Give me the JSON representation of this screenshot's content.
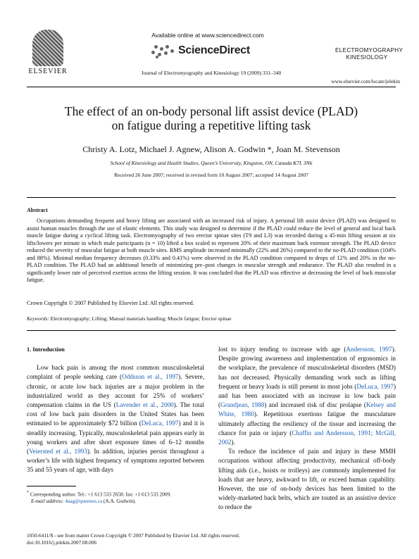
{
  "header": {
    "publisher": "ELSEVIER",
    "available_online": "Available online at www.sciencedirect.com",
    "sciencedirect": "ScienceDirect",
    "journal_ref": "Journal of Electromyography and Kinesiology 19 (2009) 331–340",
    "journal_logo_line1": "ELECTROMYOGRAPHY",
    "journal_logo_line2": "KINESIOLOGY",
    "url": "www.elsevier.com/locate/jelekin"
  },
  "title_line1": "The effect of an on-body personal lift assist device (PLAD)",
  "title_line2": "on fatigue during a repetitive lifting task",
  "authors": "Christy A. Lotz, Michael J. Agnew, Alison A. Godwin *, Joan M. Stevenson",
  "affiliation": "School of Kinesiology and Health Studies, Queen’s University, Kingston, ON, Canada K7L 3N6",
  "received": "Received 26 June 2007; received in revised form 10 August 2007; accepted 14 August 2007",
  "abstract": {
    "heading": "Abstract",
    "text": "Occupations demanding frequent and heavy lifting are associated with an increased risk of injury. A personal lift assist device (PLAD) was designed to assist human muscles through the use of elastic elements. This study was designed to determine if the PLAD could reduce the level of general and local back muscle fatigue during a cyclical lifting task. Electromyography of two erector spinae sites (T9 and L3) was recorded during a 45-min lifting session at six lifts/lowers per minute in which male participants (n = 10) lifted a box scaled to represent 20% of their maximum back extensor strength. The PLAD device reduced the severity of muscular fatigue at both muscle sites. RMS amplitude increased minimally (22% and 26%) compared to the no-PLAD condition (104% and 88%). Minimal median frequency decreases (0.33% and 0.41%) were observed in the PLAD condition compared to drops of 12% and 20% in the no-PLAD condition. The PLAD had an additional benefit of minimizing pre–post changes in muscular strength and endurance. The PLAD also resulted in a significantly lower rate of perceived exertion across the lifting session. It was concluded that the PLAD was effective at decreasing the level of back muscular fatigue.",
    "copyright": "Crown Copyright © 2007 Published by Elsevier Ltd. All rights reserved."
  },
  "keywords_label": "Keywords:",
  "keywords": "Electromyography; Lifting; Manual materials handling; Muscle fatigue; Erector spinae",
  "left_col": {
    "section": "1. Introduction",
    "p1_a": "Low back pain is among the most common musculoskeletal complaint of people seeking care (",
    "p1_c1": "Oddsson et al., 1997",
    "p1_b": "). Severe, chronic, or acute low back injuries are a major problem in the industrialized world as they account for 25% of workers’ compensation claims in the US (",
    "p1_c2": "Lavender et al., 2000",
    "p1_c": "). The total cost of low back pain disorders in the United States has been estimated to be approximately $72 billion (",
    "p1_c3": "DeLuca, 1997",
    "p1_d": ") and it is steadily increasing. Typically, musculoskeletal pain appears early in young workers and after short exposure times of 6–12 months (",
    "p1_c4": "Veiersted et al., 1993",
    "p1_e": "). In addition, injuries persist throughout a worker’s life with highest frequency of symptoms reported between 35 and 55 years of age, with days"
  },
  "right_col": {
    "p1_a": "lost to injury tending to increase with age (",
    "p1_c1": "Andersson, 1997",
    "p1_b": "). Despite growing awareness and implementation of ergonomics in the workplace, the prevalence of musculoskeletal disorders (MSD) has not decreased. Physically demanding work such as lifting frequent or heavy loads is still present in most jobs (",
    "p1_c2": "DeLuca, 1997",
    "p1_c": ") and has been associated with an increase in low back pain (",
    "p1_c3": "Grandjean, 1988",
    "p1_d": ") and increased risk of disc prolapse (",
    "p1_c4": "Kelsey and White, 1980",
    "p1_e": "). Repetitious exertions fatigue the musculature ultimately affecting the resiliency of the tissue and increasing the chance for pain or injury (",
    "p1_c5": "Chaffin and Andersson, 1991; McGill, 2002",
    "p1_f": ").",
    "p2": "To reduce the incidence of pain and injury in these MMH occupations without affecting productivity, mechanical off-body lifting aids (i.e., hoists or trolleys) are commonly implemented for loads that are heavy, awkward to lift, or exceed human capability. However, the use of on-body devices has been limited to the widely-marketed back belts, which are touted as an assistive device to reduce the"
  },
  "footnote": {
    "marker": "*",
    "line1": "Corresponding author. Tel.: +1 613 533 2658; fax: +1 613 533 2009.",
    "email_label": "E-mail address:",
    "email": "4aag@queensu.ca",
    "email_suffix": "(A.A. Godwin)."
  },
  "bottom": {
    "line1": "1050-6411/$ - see front matter Crown Copyright © 2007 Published by Elsevier Ltd. All rights reserved.",
    "line2": "doi:10.1016/j.jelekin.2007.08.006"
  }
}
